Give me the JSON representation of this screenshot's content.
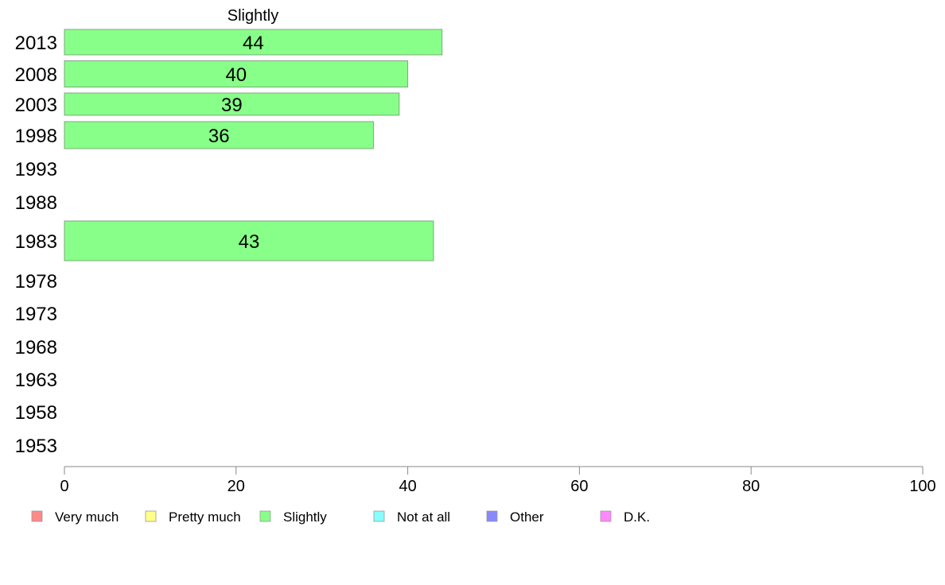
{
  "chart_data": {
    "type": "bar",
    "orientation": "horizontal",
    "title": "Slightly",
    "xlabel": "",
    "ylabel": "",
    "xlim": [
      0,
      100
    ],
    "x_ticks": [
      0,
      20,
      40,
      60,
      80,
      100
    ],
    "grid": false,
    "categories": [
      "2013",
      "2008",
      "2003",
      "1998",
      "1993",
      "1988",
      "1983",
      "1978",
      "1973",
      "1968",
      "1963",
      "1958",
      "1953"
    ],
    "series": [
      {
        "name": "Slightly",
        "color": "#88ff88",
        "values": [
          44,
          40,
          39,
          36,
          null,
          null,
          43,
          null,
          null,
          null,
          null,
          null,
          null
        ],
        "labels": [
          "44",
          "40",
          "39",
          "36",
          "",
          "",
          "43",
          "",
          "",
          "",
          "",
          "",
          ""
        ]
      }
    ],
    "legend": {
      "placement": "bottom",
      "entries": [
        {
          "label": "Very much",
          "color": "#ff8888"
        },
        {
          "label": "Pretty much",
          "color": "#ffff88"
        },
        {
          "label": "Slightly",
          "color": "#88ff88"
        },
        {
          "label": "Not at all",
          "color": "#88ffff"
        },
        {
          "label": "Other",
          "color": "#8888ff"
        },
        {
          "label": "D.K.",
          "color": "#ff88ff"
        }
      ]
    }
  }
}
